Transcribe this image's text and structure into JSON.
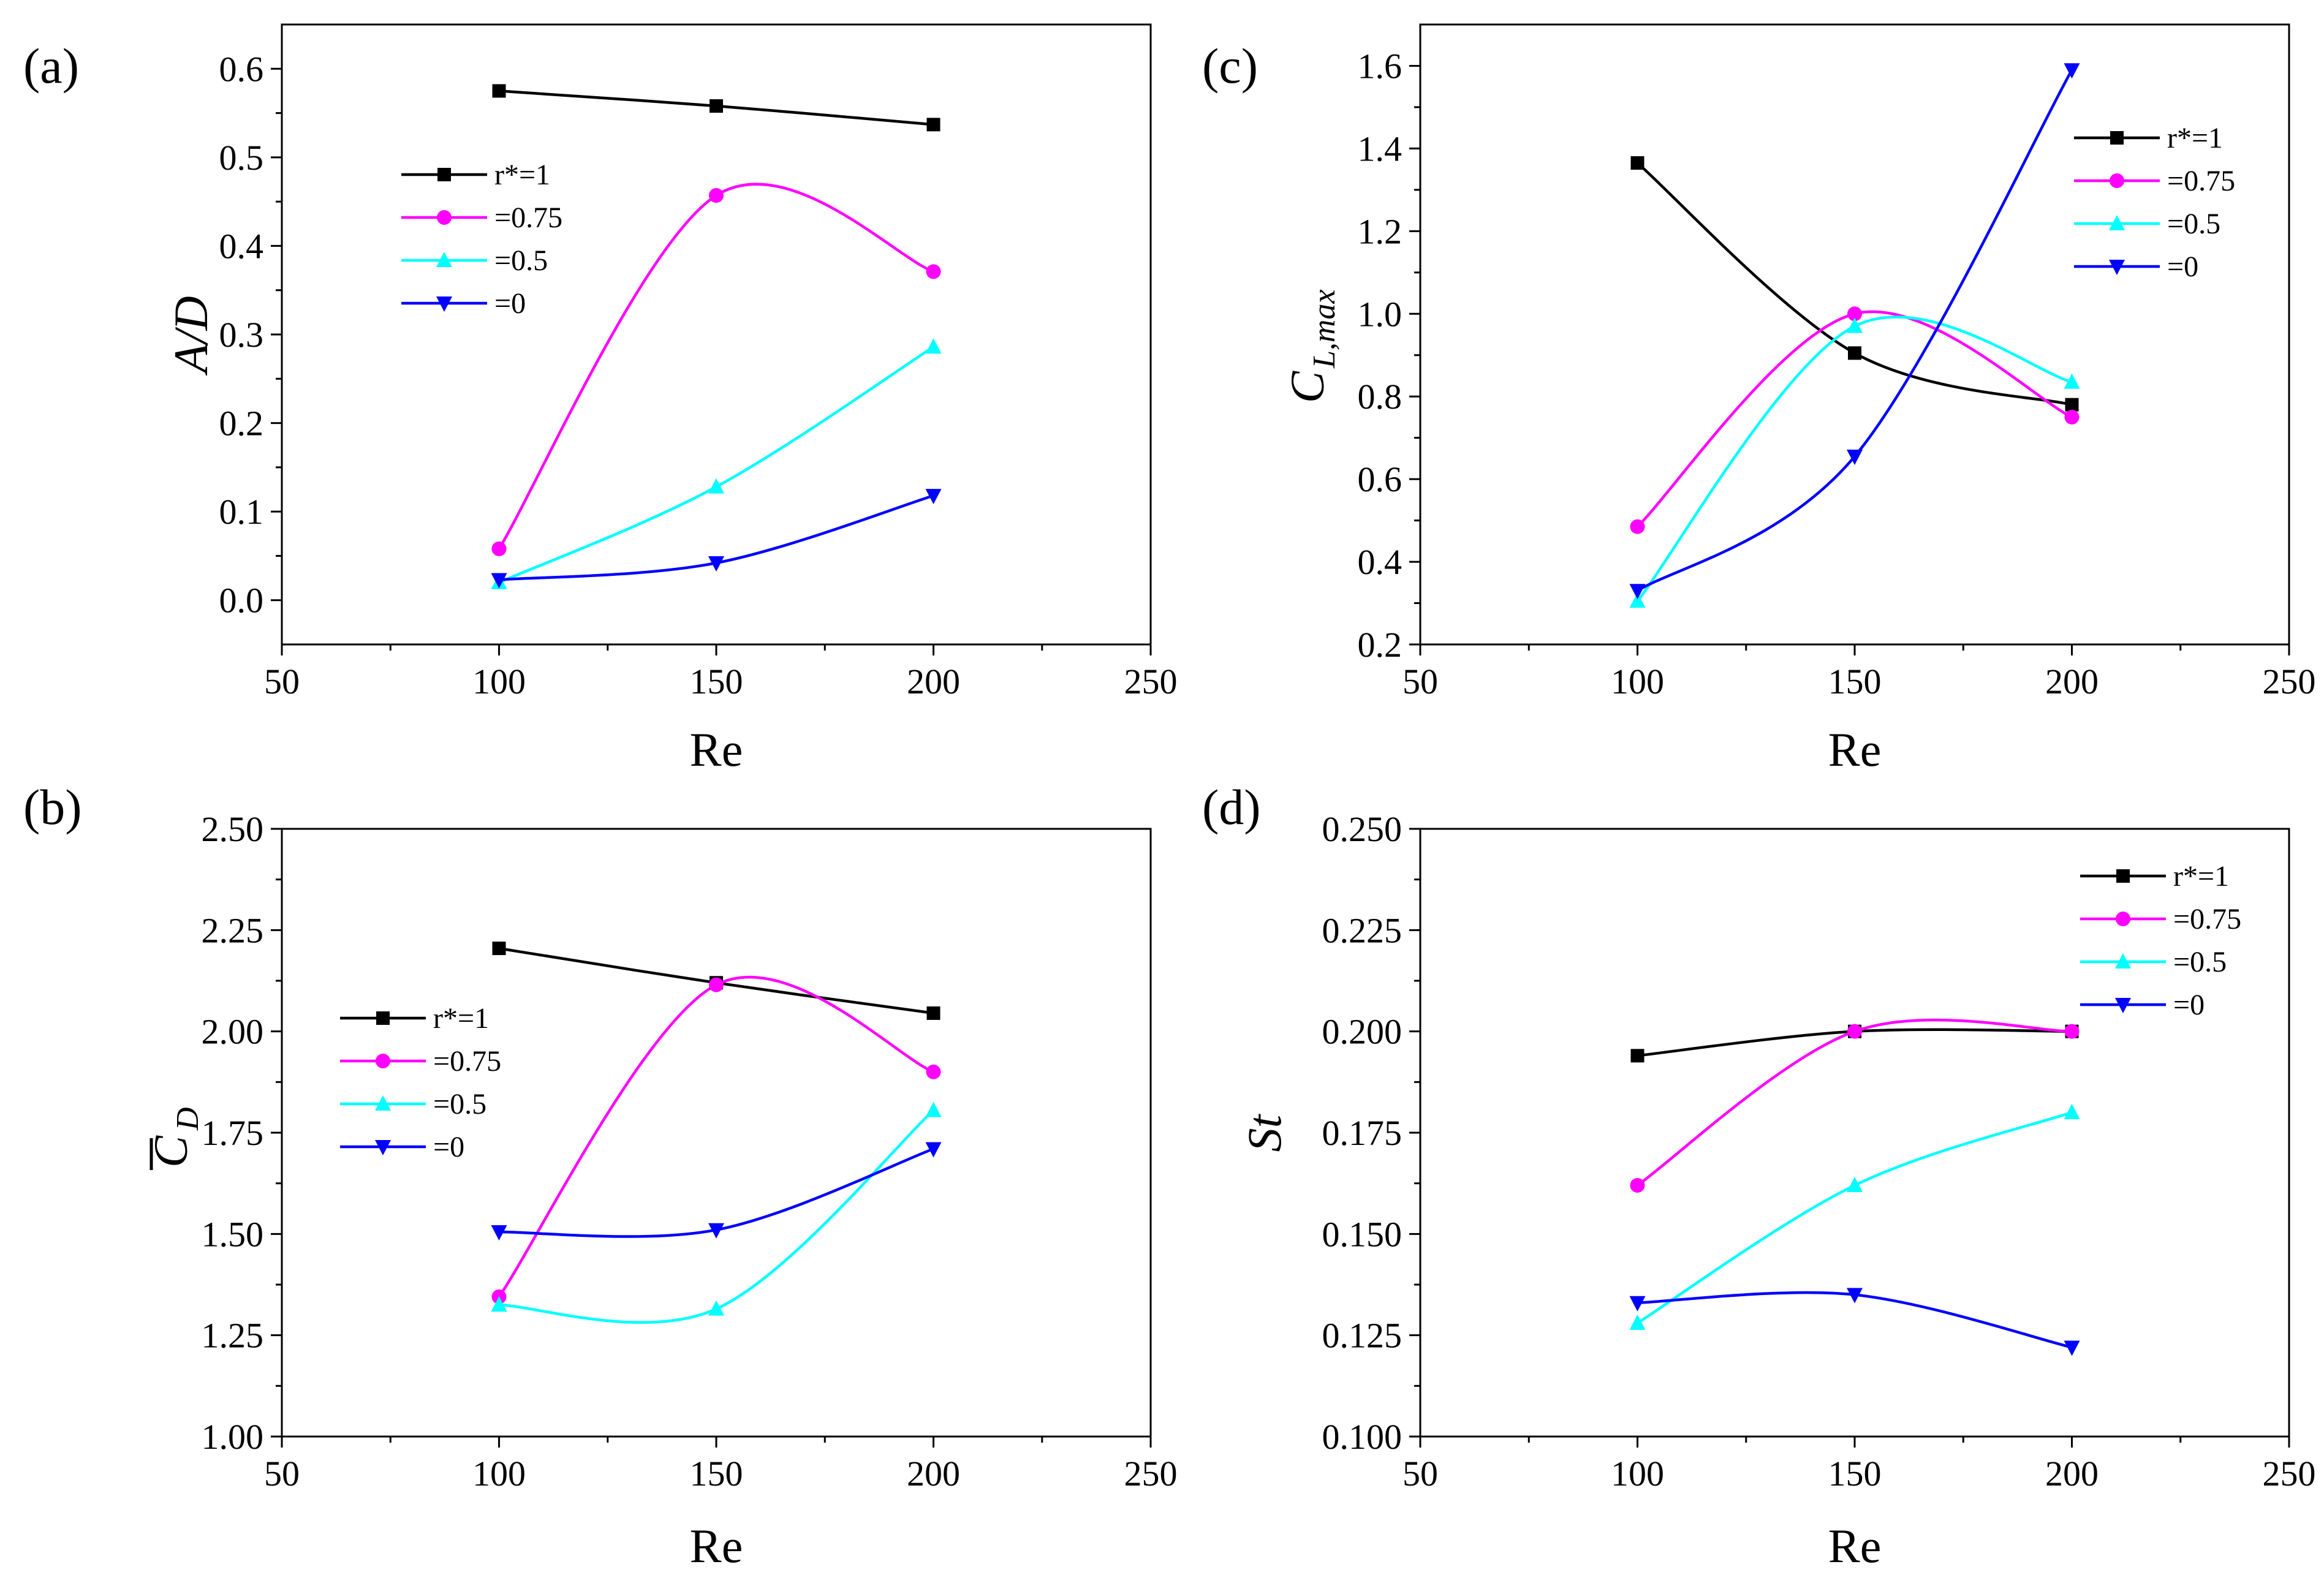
{
  "chart_data": [
    {
      "panel": "(a)",
      "type": "line",
      "xlabel": "Re",
      "ylabel": "A/D",
      "xlim": [
        50,
        250
      ],
      "ylim": [
        -0.05,
        0.65
      ],
      "xticks": [
        50,
        100,
        150,
        200,
        250
      ],
      "yticks": [
        0.0,
        0.1,
        0.2,
        0.3,
        0.4,
        0.5,
        0.6
      ],
      "ytick_labels": [
        "0.0",
        "0.1",
        "0.2",
        "0.3",
        "0.4",
        "0.5",
        "0.6"
      ],
      "legend_position": "upper-left",
      "x": [
        100,
        150,
        200
      ],
      "series": [
        {
          "name": "r*=1",
          "color": "#000000",
          "marker": "square",
          "values": [
            0.575,
            0.558,
            0.537
          ]
        },
        {
          "name": "=0.75",
          "color": "#ff00ff",
          "marker": "circle",
          "values": [
            0.058,
            0.457,
            0.371
          ]
        },
        {
          "name": "=0.5",
          "color": "#00ffff",
          "marker": "triangle-up",
          "values": [
            0.02,
            0.128,
            0.286
          ]
        },
        {
          "name": "=0",
          "color": "#0000ff",
          "marker": "triangle-down",
          "values": [
            0.023,
            0.042,
            0.118
          ]
        }
      ]
    },
    {
      "panel": "(b)",
      "type": "line",
      "xlabel": "Re",
      "ylabel": "C_D (mean)",
      "ylabel_main": "C",
      "ylabel_sub": "D",
      "xlim": [
        50,
        250
      ],
      "ylim": [
        1.0,
        2.5
      ],
      "xticks": [
        50,
        100,
        150,
        200,
        250
      ],
      "yticks": [
        1.0,
        1.25,
        1.5,
        1.75,
        2.0,
        2.25,
        2.5
      ],
      "ytick_labels": [
        "1.00",
        "1.25",
        "1.50",
        "1.75",
        "2.00",
        "2.25",
        "2.50"
      ],
      "legend_position": "middle-left",
      "x": [
        100,
        150,
        200
      ],
      "series": [
        {
          "name": "r*=1",
          "color": "#000000",
          "marker": "square",
          "values": [
            2.205,
            2.12,
            2.045
          ]
        },
        {
          "name": "=0.75",
          "color": "#ff00ff",
          "marker": "circle",
          "values": [
            1.345,
            2.115,
            1.9
          ]
        },
        {
          "name": "=0.5",
          "color": "#00ffff",
          "marker": "triangle-up",
          "values": [
            1.325,
            1.315,
            1.805
          ]
        },
        {
          "name": "=0",
          "color": "#0000ff",
          "marker": "triangle-down",
          "values": [
            1.505,
            1.51,
            1.71
          ]
        }
      ]
    },
    {
      "panel": "(c)",
      "type": "line",
      "xlabel": "Re",
      "ylabel": "C_L,max",
      "ylabel_main": "C",
      "ylabel_sub": "L,max",
      "xlim": [
        50,
        250
      ],
      "ylim": [
        0.2,
        1.7
      ],
      "xticks": [
        50,
        100,
        150,
        200,
        250
      ],
      "yticks": [
        0.2,
        0.4,
        0.6,
        0.8,
        1.0,
        1.2,
        1.4,
        1.6
      ],
      "ytick_labels": [
        "0.2",
        "0.4",
        "0.6",
        "0.8",
        "1.0",
        "1.2",
        "1.4",
        "1.6"
      ],
      "legend_position": "upper-right",
      "x": [
        100,
        150,
        200
      ],
      "series": [
        {
          "name": "r*=1",
          "color": "#000000",
          "marker": "square",
          "values": [
            1.365,
            0.905,
            0.78
          ]
        },
        {
          "name": "=0.75",
          "color": "#ff00ff",
          "marker": "circle",
          "values": [
            0.485,
            1.0,
            0.75
          ]
        },
        {
          "name": "=0.5",
          "color": "#00ffff",
          "marker": "triangle-up",
          "values": [
            0.305,
            0.97,
            0.835
          ]
        },
        {
          "name": "=0",
          "color": "#0000ff",
          "marker": "triangle-down",
          "values": [
            0.33,
            0.655,
            1.59
          ]
        }
      ]
    },
    {
      "panel": "(d)",
      "type": "line",
      "xlabel": "Re",
      "ylabel": "St",
      "xlim": [
        50,
        250
      ],
      "ylim": [
        0.1,
        0.25
      ],
      "xticks": [
        50,
        100,
        150,
        200,
        250
      ],
      "yticks": [
        0.1,
        0.125,
        0.15,
        0.175,
        0.2,
        0.225,
        0.25
      ],
      "ytick_labels": [
        "0.100",
        "0.125",
        "0.150",
        "0.175",
        "0.200",
        "0.225",
        "0.250"
      ],
      "legend_position": "upper-right",
      "x": [
        100,
        150,
        200
      ],
      "series": [
        {
          "name": "r*=1",
          "color": "#000000",
          "marker": "square",
          "values": [
            0.194,
            0.2,
            0.2
          ]
        },
        {
          "name": "=0.75",
          "color": "#ff00ff",
          "marker": "circle",
          "values": [
            0.162,
            0.2,
            0.2
          ]
        },
        {
          "name": "=0.5",
          "color": "#00ffff",
          "marker": "triangle-up",
          "values": [
            0.128,
            0.162,
            0.18
          ]
        },
        {
          "name": "=0",
          "color": "#0000ff",
          "marker": "triangle-down",
          "values": [
            0.133,
            0.135,
            0.122
          ]
        }
      ]
    }
  ]
}
